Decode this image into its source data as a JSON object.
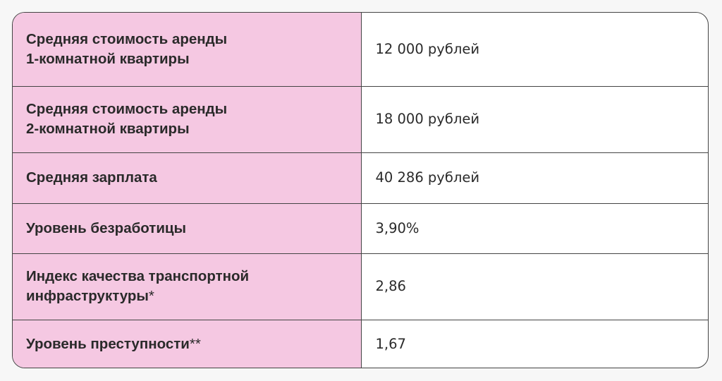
{
  "rows": [
    {
      "label_lines": [
        "Средняя стоимость аренды",
        "1-комнатной квартиры"
      ],
      "mark": "",
      "value": "12 000 рублей"
    },
    {
      "label_lines": [
        "Средняя стоимость аренды",
        "2-комнатной квартиры"
      ],
      "mark": "",
      "value": "18 000 рублей"
    },
    {
      "label_lines": [
        "Средняя зарплата"
      ],
      "mark": "",
      "value": "40 286 рублей"
    },
    {
      "label_lines": [
        "Уровень безработицы"
      ],
      "mark": "",
      "value": "3,90%"
    },
    {
      "label_lines": [
        "Индекс качества транспортной",
        "инфраструктуры"
      ],
      "mark": "*",
      "value": "2,86"
    },
    {
      "label_lines": [
        "Уровень преступности"
      ],
      "mark": "**",
      "value": "1,67"
    }
  ]
}
